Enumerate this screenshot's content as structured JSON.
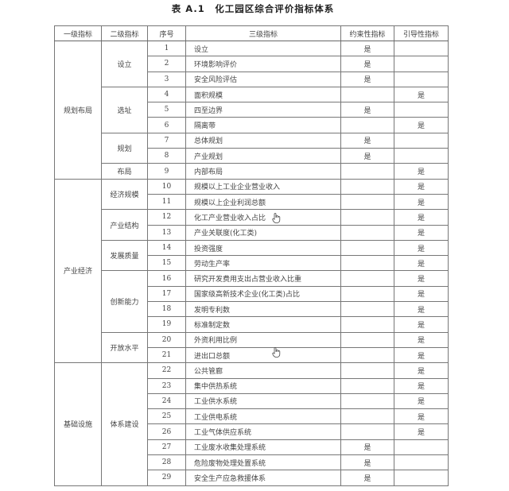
{
  "title": "表 A.1　化工园区综合评价指标体系",
  "headers": [
    "一级指标",
    "二级指标",
    "序号",
    "三级指标",
    "约束性指标",
    "引导性指标"
  ],
  "mark": "是",
  "groups": [
    {
      "level1": "规划布局",
      "subgroups": [
        {
          "level2": "设立",
          "items": [
            {
              "seq": "1",
              "name": "设立",
              "binding": true,
              "guiding": false
            },
            {
              "seq": "2",
              "name": "环境影响评价",
              "binding": true,
              "guiding": false
            },
            {
              "seq": "3",
              "name": "安全风险评估",
              "binding": true,
              "guiding": false
            }
          ]
        },
        {
          "level2": "选址",
          "items": [
            {
              "seq": "4",
              "name": "面积规模",
              "binding": false,
              "guiding": true
            },
            {
              "seq": "5",
              "name": "四至边界",
              "binding": true,
              "guiding": false
            },
            {
              "seq": "6",
              "name": "隔离带",
              "binding": false,
              "guiding": true
            }
          ]
        },
        {
          "level2": "规划",
          "items": [
            {
              "seq": "7",
              "name": "总体规划",
              "binding": true,
              "guiding": false
            },
            {
              "seq": "8",
              "name": "产业规划",
              "binding": true,
              "guiding": false
            }
          ]
        },
        {
          "level2": "布局",
          "items": [
            {
              "seq": "9",
              "name": "内部布局",
              "binding": false,
              "guiding": true
            }
          ]
        }
      ]
    },
    {
      "level1": "产业经济",
      "subgroups": [
        {
          "level2": "经济规模",
          "items": [
            {
              "seq": "10",
              "name": "规模以上工业企业营业收入",
              "binding": false,
              "guiding": true
            },
            {
              "seq": "11",
              "name": "规模以上企业利润总额",
              "binding": false,
              "guiding": true
            }
          ]
        },
        {
          "level2": "产业结构",
          "items": [
            {
              "seq": "12",
              "name": "化工产业营业收入占比",
              "binding": false,
              "guiding": true
            },
            {
              "seq": "13",
              "name": "产业关联度(化工类)",
              "binding": false,
              "guiding": true
            }
          ]
        },
        {
          "level2": "发展质量",
          "items": [
            {
              "seq": "14",
              "name": "投资强度",
              "binding": false,
              "guiding": true
            },
            {
              "seq": "15",
              "name": "劳动生产率",
              "binding": false,
              "guiding": true
            }
          ]
        },
        {
          "level2": "创新能力",
          "items": [
            {
              "seq": "16",
              "name": "研究开发费用支出占营业收入比重",
              "binding": false,
              "guiding": true
            },
            {
              "seq": "17",
              "name": "国家级高新技术企业(化工类)占比",
              "binding": false,
              "guiding": true
            },
            {
              "seq": "18",
              "name": "发明专利数",
              "binding": false,
              "guiding": true
            },
            {
              "seq": "19",
              "name": "标准制定数",
              "binding": false,
              "guiding": true
            }
          ]
        },
        {
          "level2": "开放水平",
          "items": [
            {
              "seq": "20",
              "name": "外资利用比例",
              "binding": false,
              "guiding": true
            },
            {
              "seq": "21",
              "name": "进出口总额",
              "binding": false,
              "guiding": true
            }
          ]
        }
      ]
    },
    {
      "level1": "基础设施",
      "subgroups": [
        {
          "level2": "体系建设",
          "items": [
            {
              "seq": "22",
              "name": "公共管廊",
              "binding": false,
              "guiding": true
            },
            {
              "seq": "23",
              "name": "集中供热系统",
              "binding": false,
              "guiding": true
            },
            {
              "seq": "24",
              "name": "工业供水系统",
              "binding": false,
              "guiding": true
            },
            {
              "seq": "25",
              "name": "工业供电系统",
              "binding": false,
              "guiding": true
            },
            {
              "seq": "26",
              "name": "工业气体供应系统",
              "binding": false,
              "guiding": true
            },
            {
              "seq": "27",
              "name": "工业废水收集处理系统",
              "binding": true,
              "guiding": false
            },
            {
              "seq": "28",
              "name": "危险废物处理处置系统",
              "binding": true,
              "guiding": false
            },
            {
              "seq": "29",
              "name": "安全生产应急救援体系",
              "binding": true,
              "guiding": false
            }
          ]
        }
      ]
    }
  ],
  "cursor_icon": "hand-pointer"
}
